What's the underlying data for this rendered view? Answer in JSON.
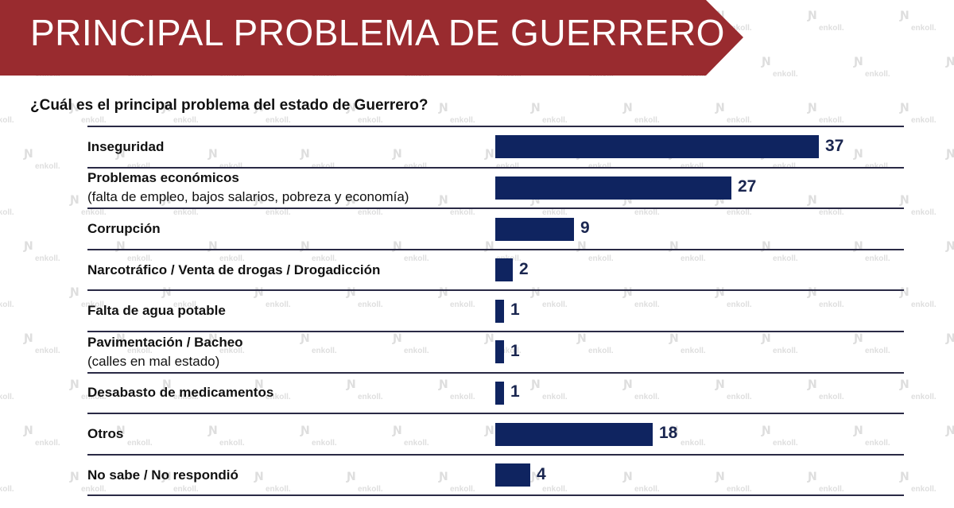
{
  "header": {
    "title": "PRINCIPAL PROBLEMA DE GUERRERO"
  },
  "question": "¿Cuál es el principal problema del estado de Guerrero?",
  "watermark": {
    "text": "enkoll."
  },
  "colors": {
    "banner": "#992b2f",
    "bar": "#0f2460",
    "value_text": "#1a2650"
  },
  "chart_data": {
    "type": "bar",
    "orientation": "horizontal",
    "title": "¿Cuál es el principal problema del estado de Guerrero?",
    "xlim": [
      0,
      37
    ],
    "categories": [
      {
        "label": "Inseguridad",
        "sub": ""
      },
      {
        "label": "Problemas económicos",
        "sub": "(falta de empleo, bajos salarios, pobreza y economía)"
      },
      {
        "label": "Corrupción",
        "sub": ""
      },
      {
        "label": "Narcotráfico / Venta de drogas / Drogadicción",
        "sub": ""
      },
      {
        "label": "Falta de agua potable",
        "sub": ""
      },
      {
        "label": "Pavimentación / Bacheo",
        "sub": "(calles en mal estado)"
      },
      {
        "label": "Desabasto de medicamentos",
        "sub": ""
      },
      {
        "label": "Otros",
        "sub": ""
      },
      {
        "label": "No sabe / No respondió",
        "sub": ""
      }
    ],
    "values": [
      37,
      27,
      9,
      2,
      1,
      1,
      1,
      18,
      4
    ]
  }
}
